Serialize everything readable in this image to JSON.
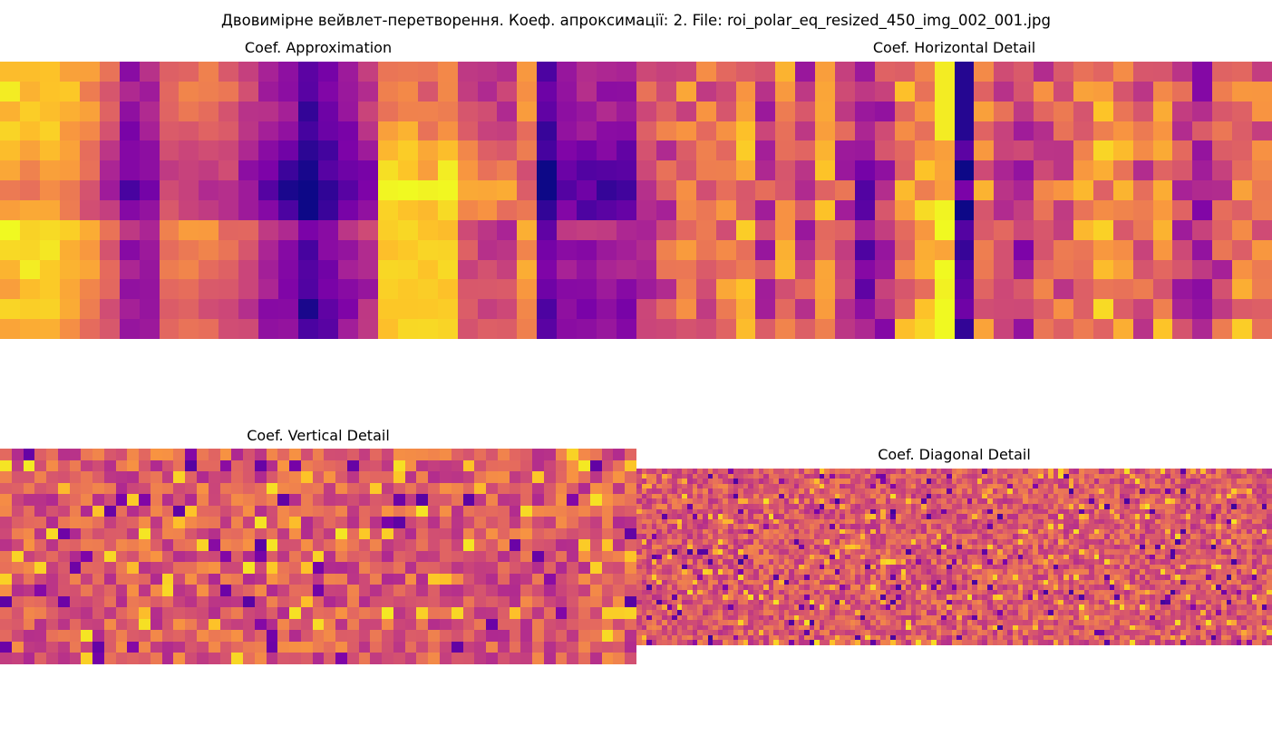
{
  "figure": {
    "title": "Двовимірне вейвлет-перетворення. Коеф. апроксимації: 2. File: roi_polar_eq_resized_450_img_002_001.jpg"
  },
  "chart_data": [
    {
      "type": "heatmap",
      "title": "Coef. Approximation",
      "colormap": "plasma",
      "grid": false,
      "axes": "off",
      "rows": 14,
      "cols": 32
    },
    {
      "type": "heatmap",
      "title": "Coef. Horizontal Detail",
      "colormap": "plasma",
      "grid": false,
      "axes": "off",
      "rows": 14,
      "cols": 32
    },
    {
      "type": "heatmap",
      "title": "Coef. Vertical Detail",
      "colormap": "plasma",
      "grid": false,
      "axes": "off",
      "rows": 19,
      "cols": 55
    },
    {
      "type": "heatmap",
      "title": "Coef. Diagonal Detail",
      "colormap": "plasma",
      "grid": false,
      "axes": "off",
      "rows": 35,
      "cols": 125
    }
  ]
}
